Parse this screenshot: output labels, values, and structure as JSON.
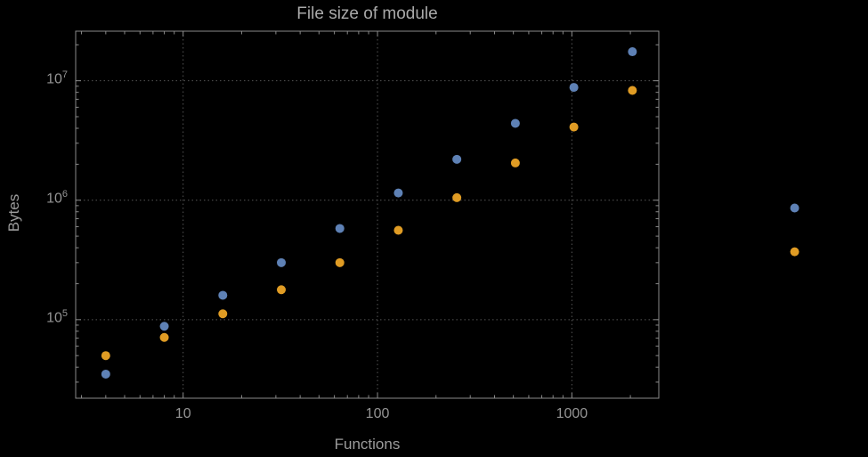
{
  "chart_data": {
    "type": "scatter",
    "title": "File size of module",
    "xlabel": "Functions",
    "ylabel": "Bytes",
    "x_scale": "log",
    "y_scale": "log",
    "xlim": [
      2.8,
      2800
    ],
    "ylim": [
      22000,
      26000000
    ],
    "grid": "dotted-major",
    "legend": "none",
    "x_ticks": [
      {
        "label": "10",
        "value": 10
      },
      {
        "label": "100",
        "value": 100
      },
      {
        "label": "1000",
        "value": 1000
      }
    ],
    "y_ticks": [
      {
        "base": "10",
        "exp": "5",
        "value": 100000
      },
      {
        "base": "10",
        "exp": "6",
        "value": 1000000
      },
      {
        "base": "10",
        "exp": "7",
        "value": 10000000
      }
    ],
    "colors": {
      "background": "#000000",
      "frame": "#8a8a8a",
      "grid": "#555555",
      "title_text": "#a9a9a9",
      "axis_label_text": "#9c9c9c",
      "tick_label_text": "#949494",
      "series_1": "#5E81B5",
      "series_2": "#E09C24"
    },
    "series": [
      {
        "name": "series-1-blue",
        "color": "#5E81B5",
        "points": [
          [
            4,
            35000
          ],
          [
            8,
            88000
          ],
          [
            16,
            160000
          ],
          [
            32,
            300000
          ],
          [
            64,
            580000
          ],
          [
            128,
            1150000
          ],
          [
            256,
            2200000
          ],
          [
            512,
            4400000
          ],
          [
            1024,
            8800000
          ],
          [
            2048,
            17500000
          ],
          [
            14000,
            860000
          ]
        ]
      },
      {
        "name": "series-2-orange",
        "color": "#E09C24",
        "points": [
          [
            4,
            50000
          ],
          [
            8,
            71000
          ],
          [
            16,
            112000
          ],
          [
            32,
            178000
          ],
          [
            64,
            300000
          ],
          [
            128,
            560000
          ],
          [
            256,
            1050000
          ],
          [
            512,
            2050000
          ],
          [
            1024,
            4100000
          ],
          [
            2048,
            8300000
          ],
          [
            14000,
            370000
          ]
        ]
      }
    ]
  }
}
